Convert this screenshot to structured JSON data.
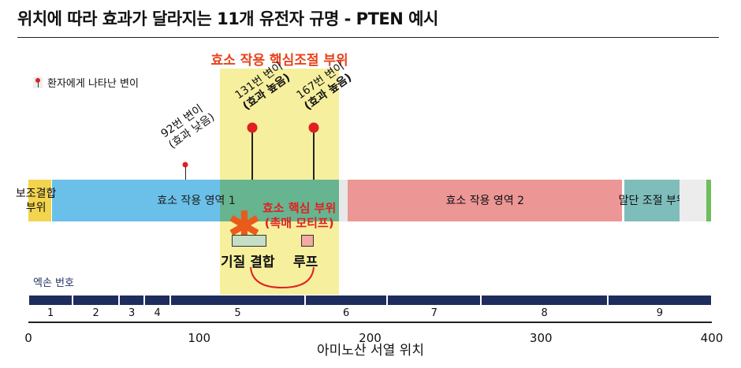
{
  "title": "위치에 따라 효과가 달라지는 11개 유전자 규명 - PTEN 예시",
  "highlight": {
    "label": "효소 작용 핵심조절 부위",
    "start": 112,
    "end": 182,
    "color": "#f6ef9e"
  },
  "legend": {
    "label": "환자에게 나타난 변이",
    "icon": "map-pin-icon"
  },
  "domains": [
    {
      "label": "보조결합\n부위",
      "start": 1,
      "end": 14,
      "color": "#f2d44e"
    },
    {
      "label": "효소 작용 영역 1",
      "start": 15,
      "end": 183,
      "color": "#63bde8"
    },
    {
      "label": "",
      "start": 183,
      "end": 188,
      "color": "#e8e8e8"
    },
    {
      "label": "효소 작용 영역 2",
      "start": 188,
      "end": 348,
      "color": "#ec9696"
    },
    {
      "label": "말단 조절 부위",
      "start": 350,
      "end": 382,
      "color": "#7fbdbb"
    },
    {
      "label": "",
      "start": 382,
      "end": 398,
      "color": "#ececec"
    },
    {
      "label": "",
      "start": 398,
      "end": 400,
      "color": "#6cbf5a"
    }
  ],
  "mutations": [
    {
      "position": 92,
      "line1": "92번 변이",
      "line2": "(효과 낮음)",
      "bold": false
    },
    {
      "position": 131,
      "line1": "131번 변이",
      "line2": "(효과 높음)",
      "bold": true
    },
    {
      "position": 167,
      "line1": "167번 변이",
      "line2": "(효과 높음)",
      "bold": true
    }
  ],
  "core": {
    "line1": "효소 핵심 부위",
    "line2": "(촉매 모티프)",
    "color": "#e02020",
    "icon": "asterisk-icon"
  },
  "substrate_label": "기질 결합",
  "loop_label": "루프",
  "exon_label": "엑손 번호",
  "exons": [
    {
      "n": "1",
      "start": 0,
      "end": 26
    },
    {
      "n": "2",
      "start": 26,
      "end": 53
    },
    {
      "n": "3",
      "start": 53,
      "end": 68
    },
    {
      "n": "4",
      "start": 68,
      "end": 83
    },
    {
      "n": "5",
      "start": 83,
      "end": 162
    },
    {
      "n": "6",
      "start": 162,
      "end": 210
    },
    {
      "n": "7",
      "start": 210,
      "end": 265
    },
    {
      "n": "8",
      "start": 265,
      "end": 339
    },
    {
      "n": "9",
      "start": 339,
      "end": 400
    }
  ],
  "axis": {
    "ticks": [
      "0",
      "100",
      "200",
      "300",
      "400"
    ],
    "label": "아미노산 서열 위치",
    "range": [
      0,
      400
    ]
  }
}
